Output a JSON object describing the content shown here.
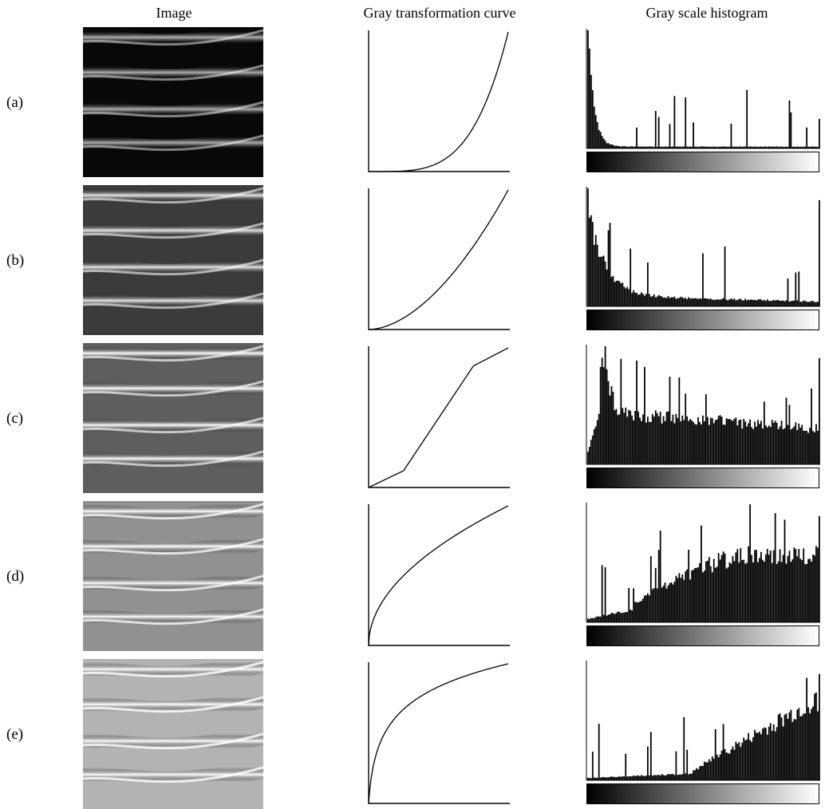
{
  "headers": {
    "image": "Image",
    "curve": "Gray transformation curve",
    "histogram": "Gray scale histogram"
  },
  "rows": [
    {
      "label": "(a)",
      "brightness": 0.18,
      "curve": {
        "kind": "power",
        "gamma": 4.0
      },
      "histogram_profile": "dark"
    },
    {
      "label": "(b)",
      "brightness": 0.38,
      "curve": {
        "kind": "power",
        "gamma": 1.8
      },
      "histogram_profile": "dark-spread"
    },
    {
      "label": "(c)",
      "brightness": 0.52,
      "curve": {
        "kind": "piecewise",
        "points": [
          [
            0,
            0
          ],
          [
            0.25,
            0.12
          ],
          [
            0.75,
            0.87
          ],
          [
            1,
            1
          ]
        ]
      },
      "histogram_profile": "mid-spread"
    },
    {
      "label": "(d)",
      "brightness": 0.72,
      "curve": {
        "kind": "power",
        "gamma": 0.5
      },
      "histogram_profile": "bright"
    },
    {
      "label": "(e)",
      "brightness": 0.85,
      "curve": {
        "kind": "log"
      },
      "histogram_profile": "very-bright"
    }
  ],
  "colors": {
    "ink": "#000000",
    "paper": "#ffffff"
  }
}
